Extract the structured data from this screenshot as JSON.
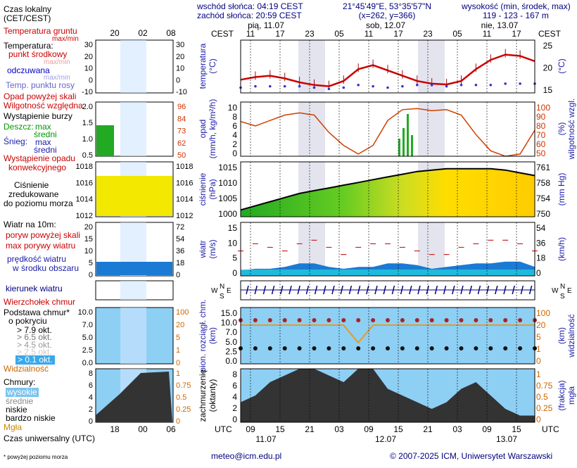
{
  "header": {
    "sunrise": "wschód słońca: 04:19 CEST",
    "sunset": "zachód słońca: 20:59 CEST",
    "coords": "21°45'49\"E, 53°35'57\"N",
    "grid": "(x=262, y=366)",
    "elev_label": "wysokość (min, środek, max)",
    "elev_values": "119 - 123 - 167 m"
  },
  "main_timeline": {
    "cest_label": "CEST",
    "dates_top": [
      "pią, 11.07",
      "sob, 12.07",
      "nie, 13.07"
    ],
    "hours_top": [
      "11",
      "17",
      "23",
      "05",
      "11",
      "17",
      "23",
      "05",
      "11",
      "17"
    ],
    "utc_label": "UTC",
    "hours_bottom": [
      "09",
      "15",
      "21",
      "03",
      "09",
      "15",
      "21",
      "03",
      "09",
      "15"
    ],
    "dates_bottom": [
      "11.07",
      "12.07",
      "13.07"
    ]
  },
  "legend_timeline": {
    "top_hours": [
      "20",
      "02",
      "08"
    ],
    "bottom_hours": [
      "18",
      "00",
      "06"
    ]
  },
  "legend": {
    "local_time": "Czas lokalny",
    "local_time_2": "(CET/CEST)",
    "temp_ground": "Temperatura gruntu",
    "temp_ground_2": "max/min",
    "temperature": "Temperatura:",
    "mid_point": "punkt środkowy",
    "maxmin1": "max/min",
    "feels_like": "odczuwana",
    "maxmin2": "max/min",
    "dew_point": "Temp. punktu rosy",
    "precip_over_scale": "Opad powyżej skali",
    "rel_humidity": "Wilgotność względna",
    "storm": "Wystąpienie burzy",
    "rain": "Deszcz:",
    "max": "max",
    "mean": "średni",
    "snow": "Śnieg:",
    "snow_max": "max",
    "snow_mean": "średni",
    "conv_precip": "Wystąpienie opadu",
    "conv_precip_2": "konwekcyjnego",
    "pressure": "Ciśnienie",
    "pressure_2": "zredukowane",
    "pressure_3": "do poziomu morza",
    "wind_10m": "Wiatr na 10m:",
    "gusts_over": "poryw powyżej skali",
    "max_gusts": "max porywy wiatru",
    "wind_speed": "prędkość wiatru",
    "wind_speed_2": "w środku obszaru",
    "wind_dir": "kierunek wiatru",
    "cloud_top": "Wierzchołek chmur",
    "cloud_base": "Podstawa chmur*",
    "cloud_base_2": "o pokryciu",
    "okt": [
      "> 7.9 okt.",
      "> 6.5 okt.",
      "> 4.5 okt.",
      "> 2.5 okt.",
      "> 0.1 okt."
    ],
    "visibility": "Widzialność",
    "clouds": "Chmury:",
    "high": "wysokie",
    "medium": "średnie",
    "low": "niskie",
    "very_low": "bardzo niskie",
    "fog": "Mgła",
    "utc_time": "Czas uniwersalny (UTC)",
    "footnote": "* powyżej poziomu morza"
  },
  "panels": {
    "temperature": {
      "title": "temperatura",
      "unit": "(°C)",
      "ticks": [
        "25",
        "20",
        "15"
      ]
    },
    "precip": {
      "title": "opad",
      "unit": "(mm/h, kg/m²/h)",
      "right_title": "wilgotność wzgl.",
      "right_unit": "(%)",
      "ticks_left": [
        "10",
        "8",
        "6",
        "4",
        "2",
        "0"
      ],
      "ticks_right": [
        "100",
        "90",
        "80",
        "70",
        "60",
        "50"
      ]
    },
    "pressure": {
      "title": "ciśnienie",
      "unit": "(hPa)",
      "right_unit": "(mm Hg)",
      "ticks_left": [
        "1015",
        "1010",
        "1005",
        "1000"
      ],
      "ticks_right": [
        "761",
        "758",
        "754",
        "750"
      ]
    },
    "wind": {
      "title": "wiatr",
      "unit": "(m/s)",
      "right_unit": "(km/h)",
      "ticks_left": [
        "15",
        "10",
        "5",
        "0"
      ],
      "ticks_right": [
        "54",
        "36",
        "18",
        "0"
      ]
    },
    "winddir": {
      "n": "N",
      "w": "W",
      "e": "E",
      "s": "S"
    },
    "cloudbase": {
      "title": "pion. rozciągł. chm.",
      "unit": "(km)",
      "right_title": "widzialność",
      "right_unit": "(km)",
      "ticks_left": [
        "15.0",
        "10.0",
        "7.0",
        "5.0",
        "2.5",
        "0.0"
      ],
      "ticks_right": [
        "100",
        "20",
        "5",
        "1",
        "0"
      ]
    },
    "cloudcover": {
      "title": "zachmurzenie",
      "unit": "(oktanty)",
      "right_title": "(frakcja)",
      "right_unit": "mgła",
      "ticks_left": [
        "8",
        "6",
        "4",
        "2",
        "0"
      ],
      "ticks_right": [
        "1",
        "0.75",
        "0.5",
        "0.25",
        "0"
      ]
    }
  },
  "legend_ticks": {
    "temp_left": [
      "30",
      "20",
      "10",
      "0",
      "-10"
    ],
    "temp_right": [
      "30",
      "20",
      "10",
      "0",
      "-10"
    ],
    "precip_left": [
      "2.0",
      "1.5",
      "1.0",
      "0.5"
    ],
    "precip_right": [
      "96",
      "84",
      "73",
      "62",
      "50"
    ],
    "pressure_left": [
      "1018",
      "1016",
      "1014",
      "1012"
    ],
    "pressure_right": [
      "1018",
      "1016",
      "1014",
      "1012"
    ],
    "wind_left": [
      "20",
      "15",
      "10",
      "5",
      "0"
    ],
    "wind_right": [
      "72",
      "54",
      "36",
      "18",
      "0"
    ],
    "cloud_left": [
      "10.0",
      "7.0",
      "5.0",
      "2.5",
      "0.0"
    ],
    "cloud_right": [
      "100",
      "20",
      "5",
      "1",
      "0"
    ],
    "cover_left": [
      "8",
      "6",
      "4",
      "2",
      "0"
    ],
    "cover_right": [
      "1",
      "0.75",
      "0.5",
      "0.25",
      "0"
    ]
  },
  "footer": {
    "email": "meteo@icm.edu.pl",
    "copyright": "© 2007-2025 ICM, Uniwersytet Warszawski"
  },
  "chart_data": {
    "type": "line",
    "x_hours_utc_from_start": [
      0,
      3,
      6,
      9,
      12,
      15,
      18,
      21,
      24,
      27,
      30,
      33,
      36,
      39,
      42,
      45,
      48,
      51,
      54,
      57,
      60
    ],
    "temperature_c": [
      15,
      16,
      16.5,
      15.5,
      14,
      13,
      12.5,
      14.5,
      19,
      20.5,
      18.5,
      16.5,
      14.5,
      13.5,
      13.2,
      14.5,
      19,
      22.5,
      24.5,
      24,
      22
    ],
    "dew_point_c": [
      12,
      12.5,
      12.5,
      12.5,
      12.5,
      12,
      11.5,
      12,
      13,
      12.5,
      12,
      12.5,
      13,
      13,
      12.5,
      13,
      13,
      13,
      13.5,
      13.5,
      13.5
    ],
    "relative_humidity_pct": [
      82,
      78,
      83,
      88,
      90,
      88,
      72,
      60,
      52,
      60,
      83,
      93,
      94,
      92,
      93,
      88,
      70,
      55,
      50,
      52,
      74
    ],
    "pressure_hpa": [
      1002.5,
      1004,
      1005.5,
      1007,
      1008.5,
      1009.5,
      1010.5,
      1011.5,
      1012.5,
      1013.5,
      1014.5,
      1015.5,
      1016.5,
      1017,
      1017.5,
      1017.5,
      1017.5,
      1017.5,
      1017,
      1016,
      1015
    ],
    "wind_speed_ms": [
      1.5,
      2,
      2,
      2.5,
      3.5,
      3.5,
      2.5,
      2,
      2.5,
      2.5,
      3.5,
      3.5,
      3,
      2,
      2.5,
      3,
      3.5,
      3.5,
      4,
      4,
      2.5
    ],
    "wind_gusts_ms": [
      7,
      9,
      8,
      7,
      9,
      10,
      8,
      6,
      8,
      9,
      9,
      8,
      7,
      6,
      6,
      8,
      9,
      10,
      10,
      9,
      7
    ],
    "visibility_km": [
      20,
      20,
      20,
      20,
      20,
      20,
      20,
      20,
      5,
      20,
      20,
      20,
      20,
      20,
      20,
      20,
      20,
      20,
      20,
      20,
      20
    ],
    "y_ranges": {
      "temperature": [
        10,
        30
      ],
      "precip": [
        0,
        10
      ],
      "humidity": [
        50,
        100
      ],
      "pressure": [
        1000,
        1020
      ],
      "wind": [
        0,
        15
      ],
      "cloud_cover": [
        0,
        8
      ]
    },
    "grid": true
  },
  "colors": {
    "temp": "#cc0000",
    "dew": "#3333cc",
    "humidity": "#d04000",
    "pressure_line": "#000000",
    "wind": "#0044aa",
    "night": "#d8d8e8"
  }
}
